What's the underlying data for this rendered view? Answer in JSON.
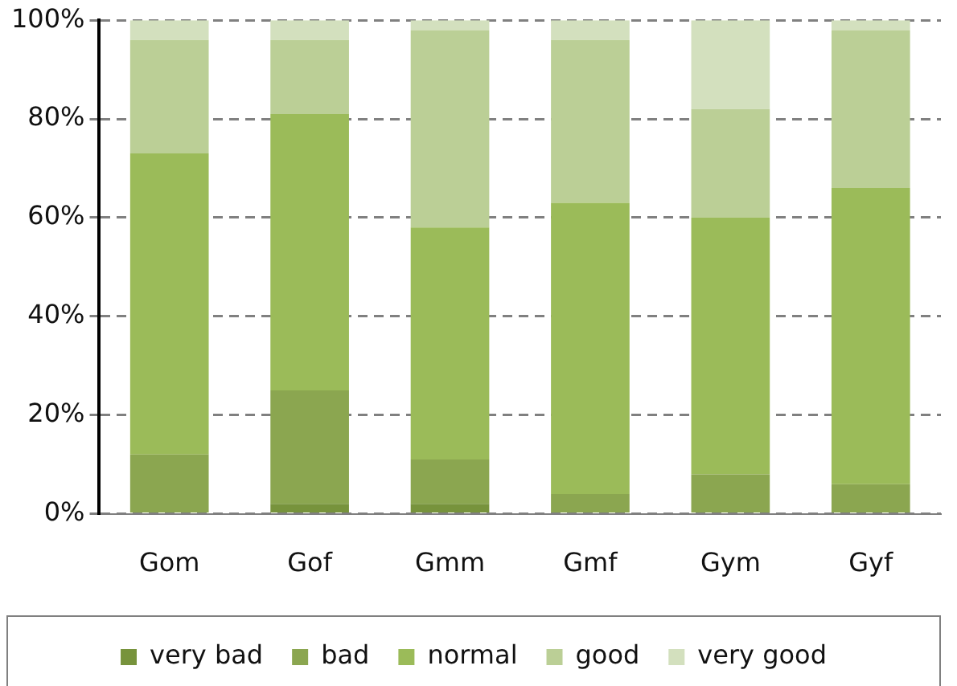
{
  "chart_data": {
    "type": "bar",
    "stacked": true,
    "categories": [
      "Gom",
      "Gof",
      "Gmm",
      "Gmf",
      "Gym",
      "Gyf"
    ],
    "series": [
      {
        "name": "very bad",
        "color": "#77933c",
        "values": [
          0,
          2,
          2,
          0,
          0,
          0
        ]
      },
      {
        "name": "bad",
        "color": "#8ba650",
        "values": [
          12,
          23,
          9,
          4,
          8,
          6
        ]
      },
      {
        "name": "normal",
        "color": "#9bbb59",
        "values": [
          61,
          56,
          47,
          59,
          52,
          60
        ]
      },
      {
        "name": "good",
        "color": "#bbcf96",
        "values": [
          23,
          15,
          40,
          33,
          22,
          32
        ]
      },
      {
        "name": "very good",
        "color": "#d3e0be",
        "values": [
          4,
          4,
          2,
          4,
          18,
          2
        ]
      }
    ],
    "ylim": [
      0,
      100
    ],
    "yticks": [
      {
        "value": 0,
        "label": "0%"
      },
      {
        "value": 20,
        "label": "20%"
      },
      {
        "value": 40,
        "label": "40%"
      },
      {
        "value": 60,
        "label": "60%"
      },
      {
        "value": 80,
        "label": "80%"
      },
      {
        "value": 100,
        "label": "100%"
      }
    ],
    "grid": "y",
    "legend": "bottom"
  }
}
